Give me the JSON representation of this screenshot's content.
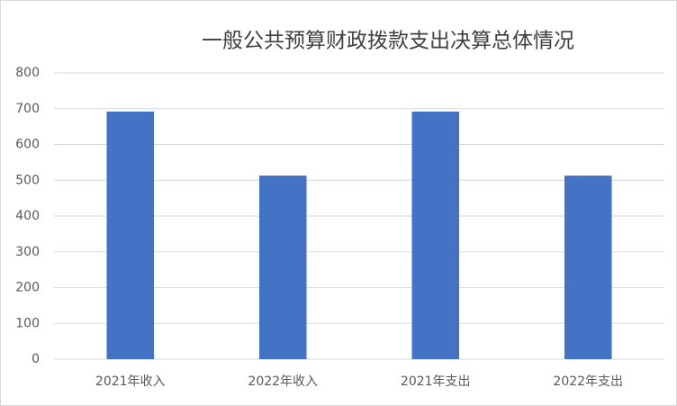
{
  "chart_data": {
    "type": "bar",
    "title": "一般公共预算财政拨款支出决算总体情况",
    "categories": [
      "2021年收入",
      "2022年收入",
      "2021年支出",
      "2022年支出"
    ],
    "values": [
      692,
      513,
      692,
      513
    ],
    "color": "#4472c4",
    "ylim": [
      0,
      800
    ],
    "yticks": [
      0,
      100,
      200,
      300,
      400,
      500,
      600,
      700,
      800
    ],
    "grid": true
  }
}
